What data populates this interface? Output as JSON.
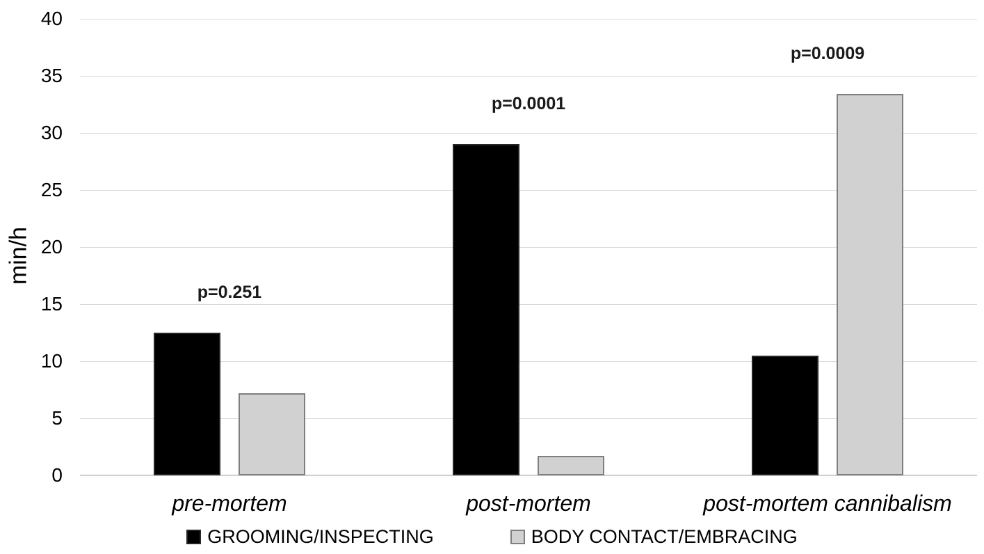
{
  "chart_data": {
    "type": "bar",
    "title": "",
    "xlabel": "",
    "ylabel": "min/h",
    "ylim": [
      0,
      40
    ],
    "yticks": [
      0,
      5,
      10,
      15,
      20,
      25,
      30,
      35,
      40
    ],
    "grid": true,
    "legend_position": "bottom",
    "categories": [
      "pre-mortem",
      "post-mortem",
      "post-mortem cannibalism"
    ],
    "series": [
      {
        "name": "GROOMING/INSPECTING",
        "values": [
          12.5,
          29.0,
          10.5
        ],
        "fill": "#000000",
        "border": "#262626"
      },
      {
        "name": "BODY CONTACT/EMBRACING",
        "values": [
          7.2,
          1.7,
          33.4
        ],
        "fill": "#d1d1d1",
        "border": "#7f7f7f"
      }
    ],
    "annotations": [
      {
        "category": "pre-mortem",
        "text": "p=0.251"
      },
      {
        "category": "post-mortem",
        "text": "p=0.0001"
      },
      {
        "category": "post-mortem cannibalism",
        "text": "p=0.0009"
      }
    ],
    "colors": {
      "gridline": "#d9d9d9",
      "axis_line": "#cfcfcf",
      "text": "#000000"
    }
  }
}
